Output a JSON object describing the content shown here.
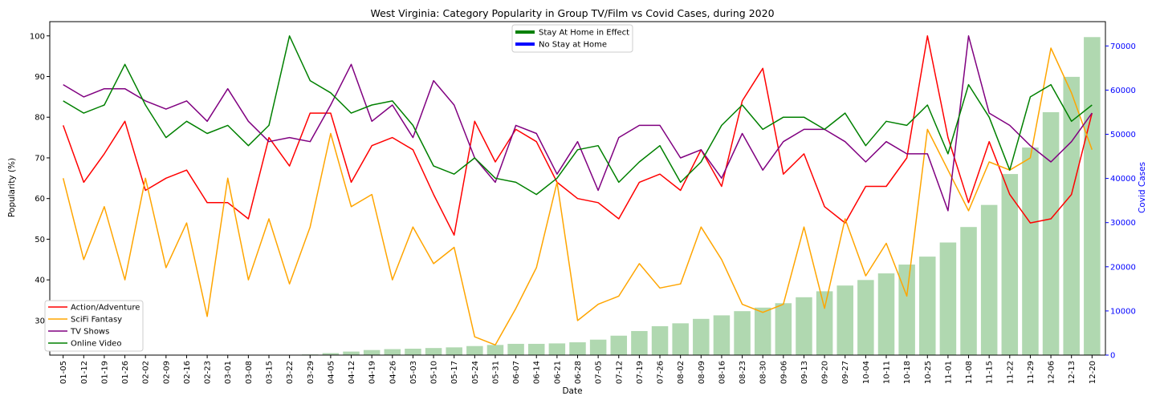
{
  "chart_data": {
    "type": "line",
    "title": "West Virginia: Category Popularity in Group TV/Film vs Covid Cases, during 2020",
    "xlabel": "Date",
    "ylabel": "Popularity (%)",
    "y2label": "Covid Cases",
    "ylim": [
      21.5,
      103.5
    ],
    "y2lim": [
      0,
      75500
    ],
    "yticks": [
      30,
      40,
      50,
      60,
      70,
      80,
      90,
      100
    ],
    "y2ticks": [
      0,
      10000,
      20000,
      30000,
      40000,
      50000,
      60000,
      70000
    ],
    "grid": false,
    "x": [
      "01-05",
      "01-12",
      "01-19",
      "01-26",
      "02-02",
      "02-09",
      "02-16",
      "02-23",
      "03-01",
      "03-08",
      "03-15",
      "03-22",
      "03-29",
      "04-05",
      "04-12",
      "04-19",
      "04-26",
      "05-03",
      "05-10",
      "05-17",
      "05-24",
      "05-31",
      "06-07",
      "06-14",
      "06-21",
      "06-28",
      "07-05",
      "07-12",
      "07-19",
      "07-26",
      "08-02",
      "08-09",
      "08-16",
      "08-23",
      "08-30",
      "09-06",
      "09-13",
      "09-20",
      "09-27",
      "10-04",
      "10-11",
      "10-18",
      "10-25",
      "11-01",
      "11-08",
      "11-15",
      "11-22",
      "11-29",
      "12-06",
      "12-13",
      "12-20"
    ],
    "series": [
      {
        "name": "Action/Adventure",
        "color": "#ff0000",
        "values": [
          78,
          64,
          71,
          79,
          62,
          65,
          67,
          59,
          59,
          55,
          75,
          68,
          81,
          81,
          64,
          73,
          75,
          72,
          61,
          51,
          79,
          69,
          77,
          74,
          64,
          60,
          59,
          55,
          64,
          66,
          62,
          72,
          63,
          84,
          92,
          66,
          71,
          58,
          54,
          63,
          63,
          70,
          100,
          75,
          59,
          74,
          61,
          54,
          55,
          61,
          81
        ]
      },
      {
        "name": "SciFi Fantasy",
        "color": "#ffa500",
        "values": [
          65,
          45,
          58,
          40,
          65,
          43,
          54,
          31,
          65,
          40,
          55,
          39,
          53,
          76,
          58,
          61,
          40,
          53,
          44,
          48,
          26,
          24,
          33,
          43,
          64,
          30,
          34,
          36,
          44,
          38,
          39,
          53,
          45,
          34,
          32,
          34,
          53,
          33,
          55,
          41,
          49,
          36,
          77,
          67,
          57,
          69,
          67,
          70,
          97,
          86,
          72
        ]
      },
      {
        "name": "TV Shows",
        "color": "#800080",
        "values": [
          88,
          85,
          87,
          87,
          84,
          82,
          84,
          79,
          87,
          79,
          74,
          75,
          74,
          83,
          93,
          79,
          83,
          75,
          89,
          83,
          70,
          64,
          78,
          76,
          66,
          74,
          62,
          75,
          78,
          78,
          70,
          72,
          65,
          76,
          67,
          74,
          77,
          77,
          74,
          69,
          74,
          71,
          71,
          57,
          100,
          81,
          78,
          73,
          69,
          74,
          81
        ]
      },
      {
        "name": "Online Video",
        "color": "#008000",
        "values": [
          84,
          81,
          83,
          93,
          83,
          75,
          79,
          76,
          78,
          73,
          78,
          100,
          89,
          86,
          81,
          83,
          84,
          78,
          68,
          66,
          70,
          65,
          64,
          61,
          65,
          72,
          73,
          64,
          69,
          73,
          64,
          69,
          78,
          83,
          77,
          80,
          80,
          77,
          81,
          73,
          79,
          78,
          83,
          71,
          88,
          80,
          67,
          85,
          88,
          79,
          83
        ]
      }
    ],
    "bars": {
      "name": "Covid Cases",
      "color": "#b0d8b0",
      "values": [
        0,
        0,
        0,
        0,
        0,
        0,
        0,
        0,
        0,
        0,
        0,
        40,
        150,
        450,
        800,
        1150,
        1350,
        1450,
        1600,
        1750,
        2050,
        2300,
        2550,
        2550,
        2650,
        2900,
        3500,
        4400,
        5450,
        6550,
        7200,
        8200,
        9000,
        9950,
        10750,
        11750,
        13100,
        14450,
        15750,
        17000,
        18500,
        20500,
        22300,
        25500,
        29000,
        34000,
        41000,
        47000,
        55000,
        63000,
        72000
      ]
    },
    "legend_lines": [
      {
        "label": "Action/Adventure",
        "color": "#ff0000"
      },
      {
        "label": "SciFi Fantasy",
        "color": "#ffa500"
      },
      {
        "label": "TV Shows",
        "color": "#800080"
      },
      {
        "label": "Online Video",
        "color": "#008000"
      }
    ],
    "legend_lines_position": "bottom-left",
    "legend_state": [
      {
        "label": "Stay At Home in Effect",
        "color": "#008000"
      },
      {
        "label": "No Stay at Home",
        "color": "#0000ff"
      }
    ],
    "legend_state_position": "top-center",
    "y2_axis_color": "#0000ff"
  }
}
